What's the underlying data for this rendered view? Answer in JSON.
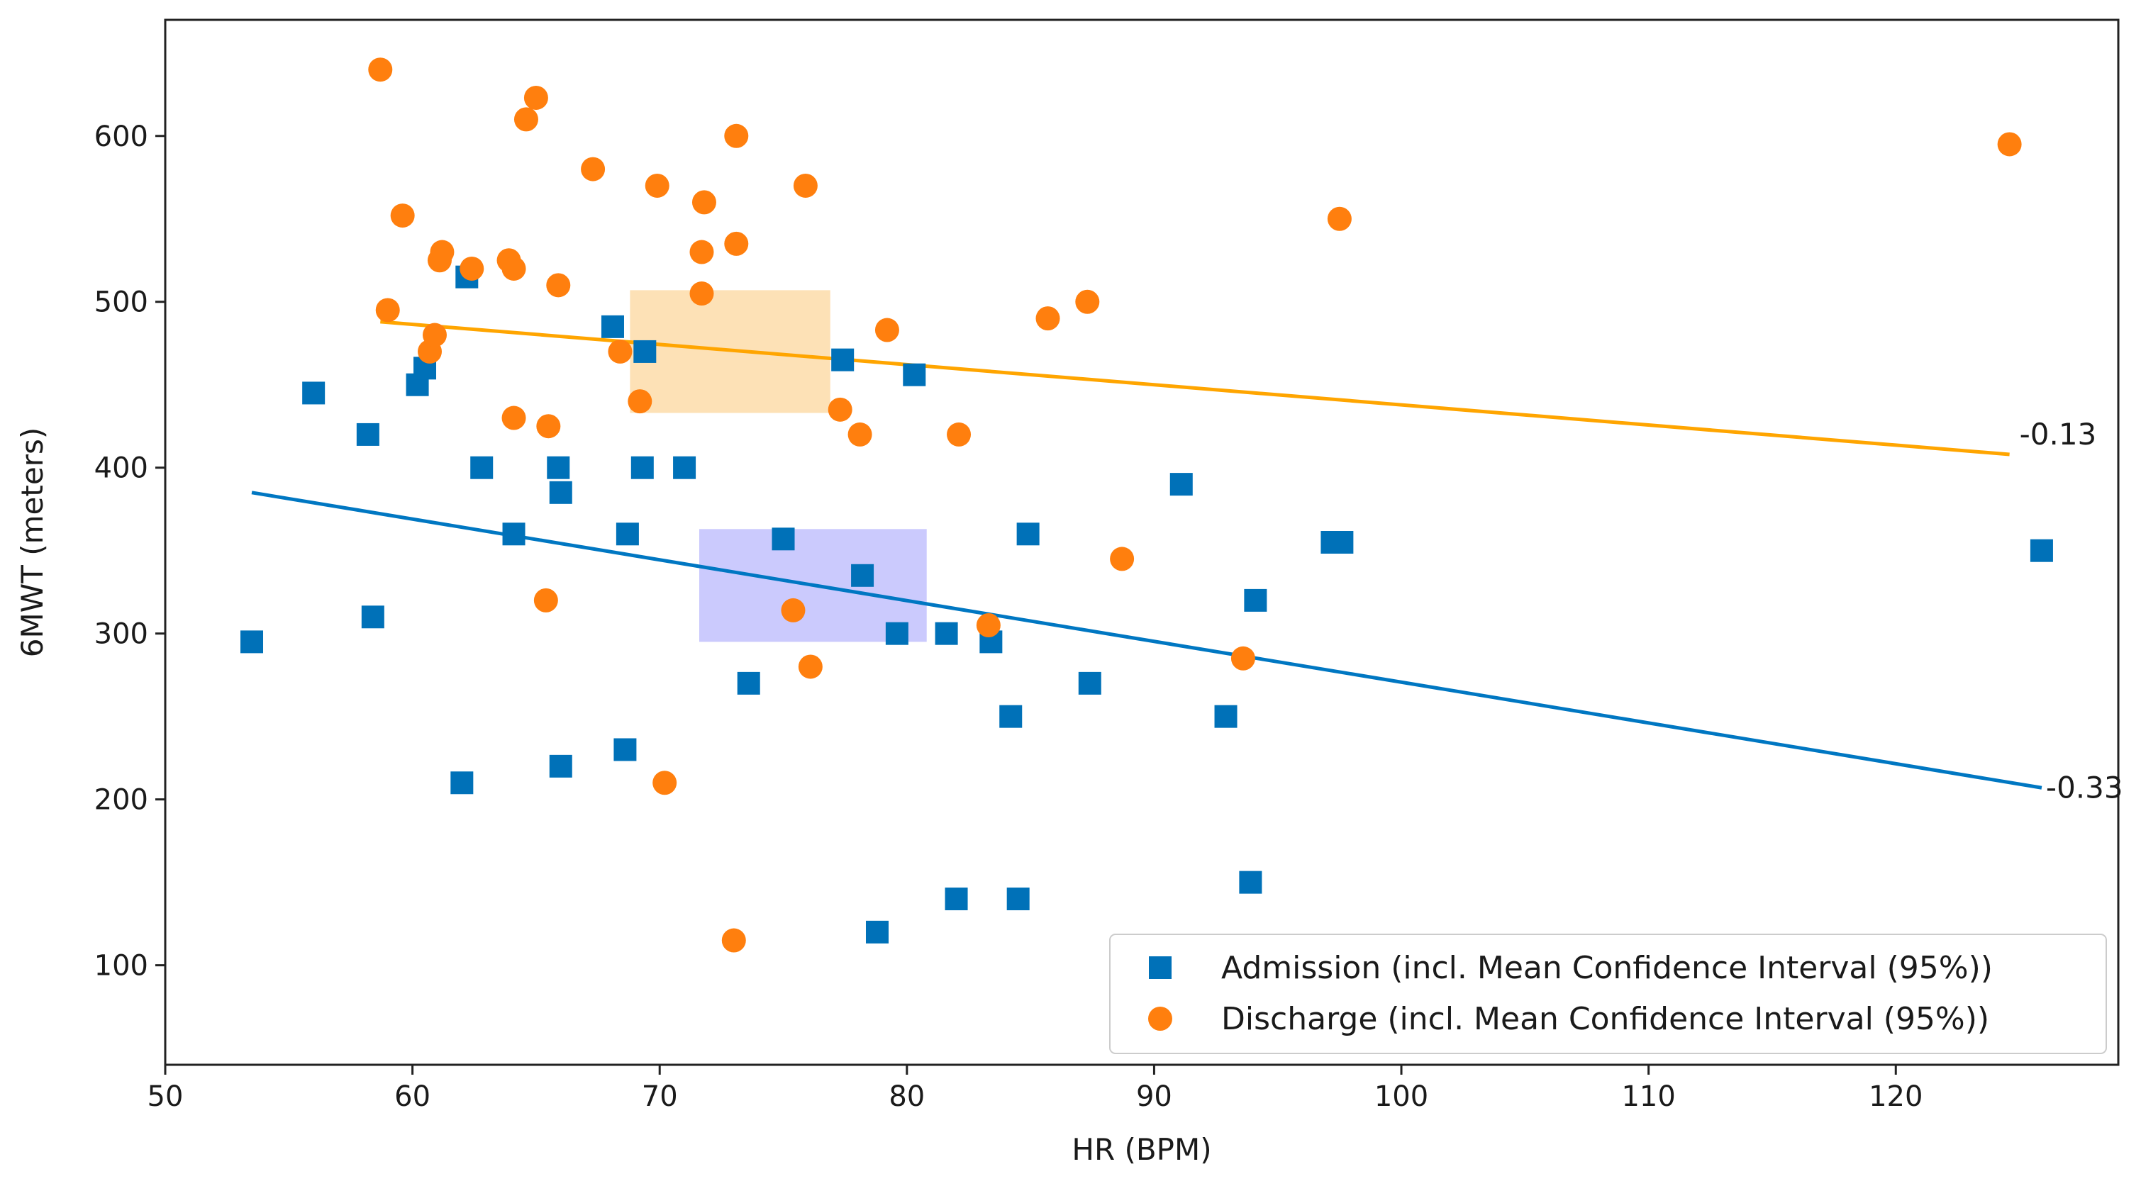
{
  "chart_data": {
    "type": "scatter",
    "title": "",
    "xlabel": "HR (BPM)",
    "ylabel": "6MWT (meters)",
    "xlim": [
      50,
      129
    ],
    "ylim": [
      40,
      670
    ],
    "xticks": [
      50,
      60,
      70,
      80,
      90,
      100,
      110,
      120
    ],
    "yticks": [
      100,
      200,
      300,
      400,
      500,
      600
    ],
    "grid": false,
    "legend_position": "bottom-right",
    "series": [
      {
        "name": "Admission (incl. Mean Confidence Interval (95%))",
        "marker": "square",
        "color": "#0071b8",
        "points": [
          [
            53.5,
            295
          ],
          [
            56,
            445
          ],
          [
            58.2,
            420
          ],
          [
            58.4,
            310
          ],
          [
            60.2,
            450
          ],
          [
            60.5,
            460
          ],
          [
            62,
            210
          ],
          [
            62.2,
            515
          ],
          [
            62.8,
            400
          ],
          [
            64.1,
            360
          ],
          [
            65.9,
            400
          ],
          [
            66,
            385
          ],
          [
            66,
            220
          ],
          [
            68.1,
            485
          ],
          [
            68.6,
            230
          ],
          [
            68.7,
            360
          ],
          [
            69.3,
            400
          ],
          [
            69.4,
            470
          ],
          [
            71,
            400
          ],
          [
            73.6,
            270
          ],
          [
            75,
            357
          ],
          [
            77.4,
            465
          ],
          [
            78.2,
            335
          ],
          [
            78.8,
            120
          ],
          [
            79.6,
            300
          ],
          [
            80.3,
            456
          ],
          [
            81.6,
            300
          ],
          [
            82,
            140
          ],
          [
            83.4,
            295
          ],
          [
            84.2,
            250
          ],
          [
            84.5,
            140
          ],
          [
            84.9,
            360
          ],
          [
            87.4,
            270
          ],
          [
            91.1,
            390
          ],
          [
            92.9,
            250
          ],
          [
            93.9,
            150
          ],
          [
            94.1,
            320
          ],
          [
            97.2,
            355
          ],
          [
            97.6,
            355
          ],
          [
            125.9,
            350
          ]
        ],
        "trend": {
          "x": [
            53.5,
            125.9
          ],
          "y": [
            385,
            207
          ],
          "label": "-0.33"
        },
        "ci_box": {
          "x": [
            71.6,
            80.8
          ],
          "y": [
            295,
            363
          ]
        }
      },
      {
        "name": "Discharge (incl. Mean Confidence Interval (95%))",
        "marker": "circle",
        "color": "#ff7f0e",
        "points": [
          [
            58.7,
            640
          ],
          [
            59,
            495
          ],
          [
            59.6,
            552
          ],
          [
            60.7,
            470
          ],
          [
            60.9,
            480
          ],
          [
            61.1,
            525
          ],
          [
            61.2,
            530
          ],
          [
            62.4,
            520
          ],
          [
            63.9,
            525
          ],
          [
            64.1,
            520
          ],
          [
            64.1,
            430
          ],
          [
            64.6,
            610
          ],
          [
            65,
            623
          ],
          [
            65.4,
            320
          ],
          [
            65.5,
            425
          ],
          [
            65.9,
            510
          ],
          [
            67.3,
            580
          ],
          [
            68.4,
            470
          ],
          [
            69.2,
            440
          ],
          [
            69.9,
            570
          ],
          [
            70.2,
            210
          ],
          [
            71.7,
            530
          ],
          [
            71.7,
            505
          ],
          [
            71.8,
            560
          ],
          [
            73,
            115
          ],
          [
            73.1,
            535
          ],
          [
            73.1,
            600
          ],
          [
            75.4,
            314
          ],
          [
            75.9,
            570
          ],
          [
            76.1,
            280
          ],
          [
            77.3,
            435
          ],
          [
            78.1,
            420
          ],
          [
            79.2,
            483
          ],
          [
            82.1,
            420
          ],
          [
            83.3,
            305
          ],
          [
            85.7,
            490
          ],
          [
            87.3,
            500
          ],
          [
            88.7,
            345
          ],
          [
            93.6,
            285
          ],
          [
            97.5,
            550
          ],
          [
            124.6,
            595
          ]
        ],
        "trend": {
          "x": [
            58.7,
            124.6
          ],
          "y": [
            488,
            408
          ],
          "label": "-0.13"
        },
        "ci_box": {
          "x": [
            68.8,
            76.9
          ],
          "y": [
            433,
            507
          ]
        }
      }
    ]
  },
  "colors": {
    "admission": "#0071b8",
    "admission_trend": "#0077c2",
    "admission_ci": "#b9b8fc",
    "discharge": "#ff7f0e",
    "discharge_trend": "#ffa500",
    "discharge_ci": "#fcd9a4"
  }
}
